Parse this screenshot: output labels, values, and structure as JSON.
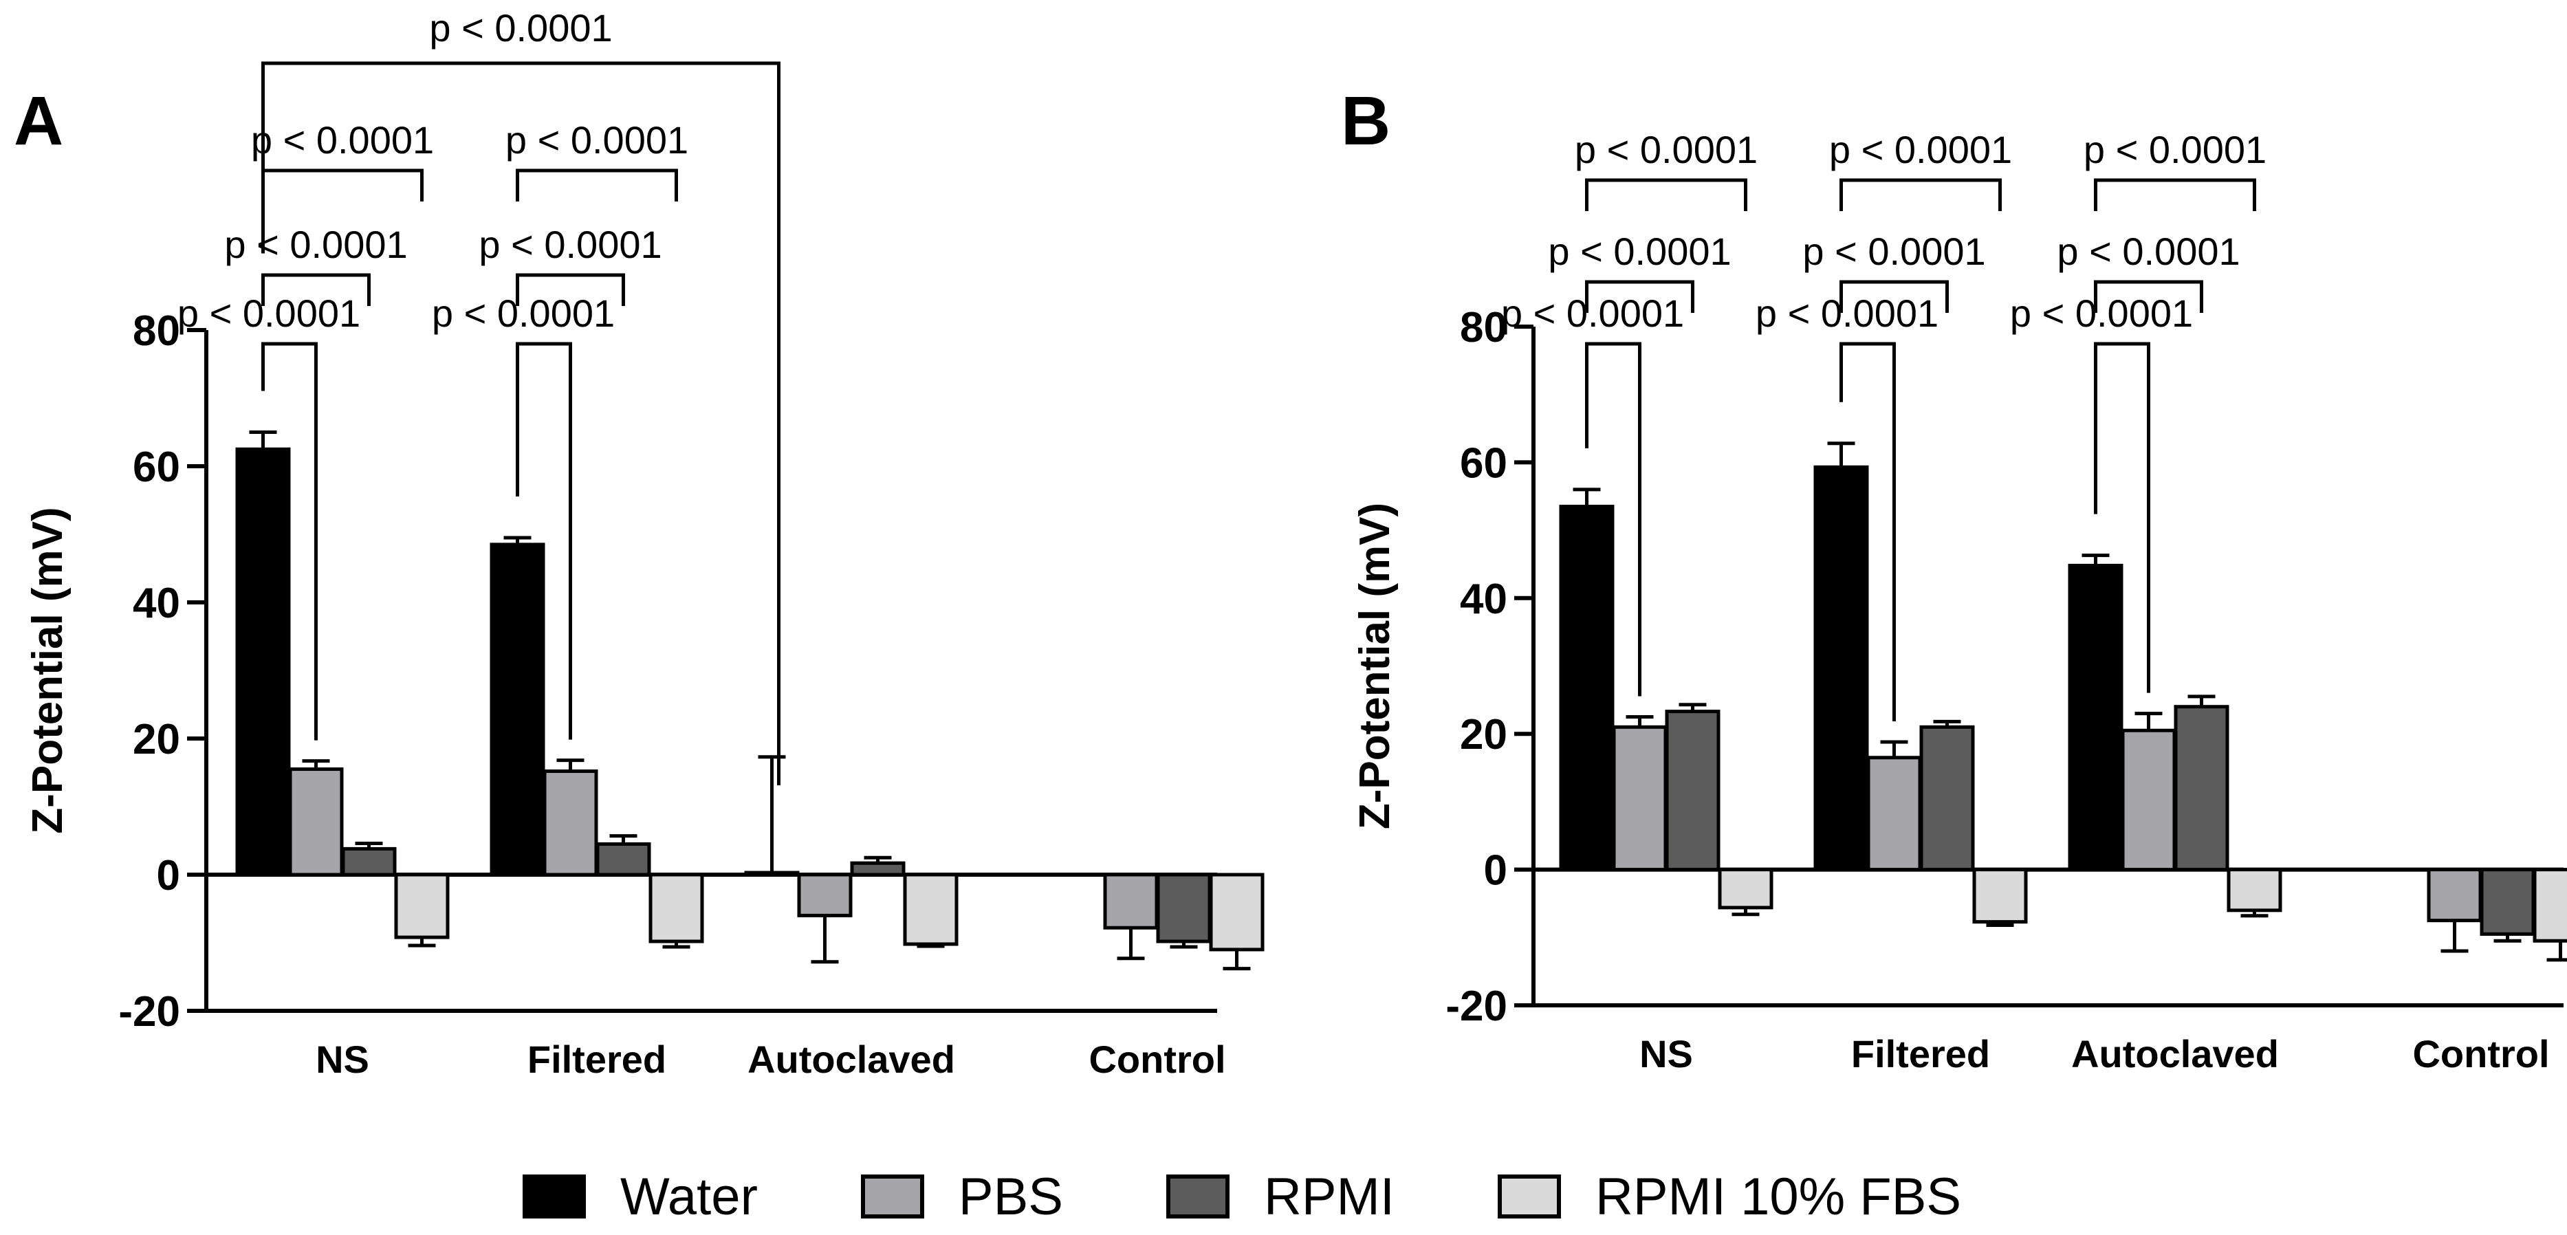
{
  "legend": [
    {
      "name": "Water",
      "color": "#000000"
    },
    {
      "name": "PBS",
      "color": "#a6a6aa"
    },
    {
      "name": "RPMI",
      "color": "#5c5c5c"
    },
    {
      "name": "RPMI 10% FBS",
      "color": "#dadada"
    }
  ],
  "chart_data": [
    {
      "panel": "A",
      "type": "bar",
      "ylabel": "Z-Potential (mV)",
      "ylim": [
        -20,
        80
      ],
      "yticks": [
        -20,
        0,
        20,
        40,
        60,
        80
      ],
      "categories": [
        "NS",
        "Filtered",
        "Autoclaved",
        "Control"
      ],
      "series": [
        {
          "name": "Water",
          "values": [
            62.5,
            48.5,
            0.3,
            null
          ],
          "errors": [
            2.5,
            1.0,
            17.0,
            null
          ]
        },
        {
          "name": "PBS",
          "values": [
            15.5,
            15.2,
            -6.0,
            -7.8
          ],
          "errors": [
            1.2,
            1.6,
            6.8,
            4.5
          ]
        },
        {
          "name": "RPMI",
          "values": [
            3.8,
            4.5,
            1.7,
            -9.8
          ],
          "errors": [
            0.8,
            1.2,
            0.8,
            0.8
          ]
        },
        {
          "name": "RPMI 10% FBS",
          "values": [
            -9.2,
            -9.8,
            -10.2,
            -11.0
          ],
          "errors": [
            1.2,
            0.8,
            0.3,
            2.8
          ]
        }
      ],
      "comparisons": [
        {
          "label": "p < 0.0001",
          "category": 0,
          "from": 0,
          "to": 1
        },
        {
          "label": "p < 0.0001",
          "category": 0,
          "from": 0,
          "to": 2
        },
        {
          "label": "p < 0.0001",
          "category": 0,
          "from": 0,
          "to": 3
        },
        {
          "label": "p < 0.0001",
          "category": 1,
          "from": 0,
          "to": 1
        },
        {
          "label": "p < 0.0001",
          "category": 1,
          "from": 0,
          "to": 2
        },
        {
          "label": "p < 0.0001",
          "category": 1,
          "from": 0,
          "to": 3
        },
        {
          "label": "p < 0.0001",
          "type": "cross",
          "fromCategory": 0,
          "toCategory": 2
        }
      ]
    },
    {
      "panel": "B",
      "type": "bar",
      "ylabel": "Z-Potential (mV)",
      "ylim": [
        -20,
        80
      ],
      "yticks": [
        -20,
        0,
        20,
        40,
        60,
        80
      ],
      "categories": [
        "NS",
        "Filtered",
        "Autoclaved",
        "Control"
      ],
      "series": [
        {
          "name": "Water",
          "values": [
            53.5,
            59.3,
            44.8,
            null
          ],
          "errors": [
            2.5,
            3.5,
            1.5,
            null
          ]
        },
        {
          "name": "PBS",
          "values": [
            21.0,
            16.5,
            20.5,
            -7.5
          ],
          "errors": [
            1.5,
            2.3,
            2.5,
            4.5
          ]
        },
        {
          "name": "RPMI",
          "values": [
            23.3,
            21.0,
            24.0,
            -9.5
          ],
          "errors": [
            1.0,
            0.8,
            1.5,
            1.0
          ]
        },
        {
          "name": "RPMI 10% FBS",
          "values": [
            -5.6,
            -7.7,
            -6.0,
            -10.5
          ],
          "errors": [
            1.0,
            0.5,
            0.8,
            2.8
          ]
        }
      ],
      "comparisons": [
        {
          "label": "p < 0.0001",
          "category": 0,
          "from": 0,
          "to": 1
        },
        {
          "label": "p < 0.0001",
          "category": 0,
          "from": 0,
          "to": 2
        },
        {
          "label": "p < 0.0001",
          "category": 0,
          "from": 0,
          "to": 3
        },
        {
          "label": "p < 0.0001",
          "category": 1,
          "from": 0,
          "to": 1
        },
        {
          "label": "p < 0.0001",
          "category": 1,
          "from": 0,
          "to": 2
        },
        {
          "label": "p < 0.0001",
          "category": 1,
          "from": 0,
          "to": 3
        },
        {
          "label": "p < 0.0001",
          "category": 2,
          "from": 0,
          "to": 1
        },
        {
          "label": "p < 0.0001",
          "category": 2,
          "from": 0,
          "to": 2
        },
        {
          "label": "p < 0.0001",
          "category": 2,
          "from": 0,
          "to": 3
        }
      ]
    }
  ]
}
